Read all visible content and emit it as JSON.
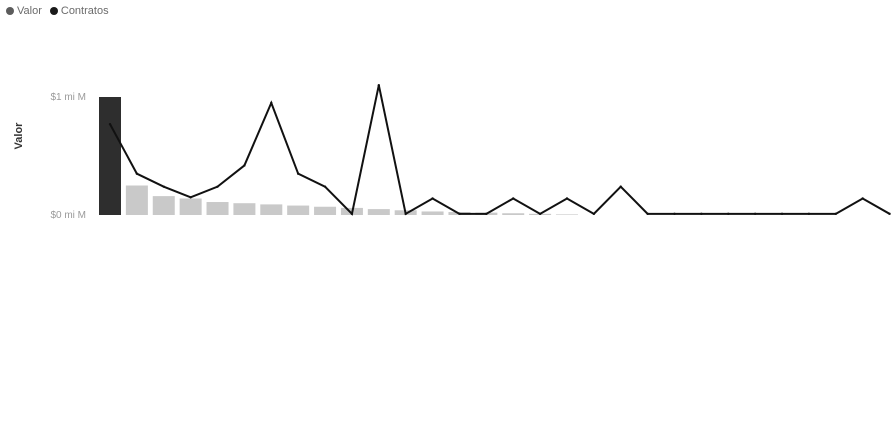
{
  "legend": {
    "bar_label": "Valor",
    "line_label": "Contratos"
  },
  "chart_data": {
    "type": "bar",
    "title": "",
    "xlabel": "",
    "ylabel": "Valor",
    "y_ticks": [
      "$0 mi M",
      "$1 mi M"
    ],
    "ylim": [
      0,
      1.05
    ],
    "grid": false,
    "legend_position": "top-left",
    "categories": [
      "",
      "",
      "",
      "",
      "",
      "",
      "",
      "",
      "",
      "",
      "",
      "",
      "",
      "",
      "",
      "",
      "",
      "",
      "",
      "",
      "",
      "",
      "",
      "",
      "",
      "",
      "",
      "",
      "",
      ""
    ],
    "series": [
      {
        "name": "Valor",
        "kind": "bar",
        "color": "#2e2e2e",
        "values": [
          1.0,
          0.25,
          0.16,
          0.14,
          0.11,
          0.1,
          0.09,
          0.08,
          0.07,
          0.06,
          0.05,
          0.04,
          0.03,
          0.025,
          0.02,
          0.015,
          0.01,
          0.005,
          0,
          0,
          0,
          0,
          0,
          0,
          0,
          0,
          0,
          0,
          0,
          0
        ]
      },
      {
        "name": "Contratos",
        "kind": "line",
        "color": "#111111",
        "values": [
          0.77,
          0.35,
          0.24,
          0.15,
          0.24,
          0.42,
          0.95,
          0.35,
          0.24,
          0.01,
          1.1,
          0.01,
          0.14,
          0.01,
          0.01,
          0.14,
          0.01,
          0.14,
          0.01,
          0.24,
          0.01,
          0.01,
          0.01,
          0.01,
          0.01,
          0.01,
          0.01,
          0.01,
          0.14,
          0.01
        ]
      }
    ]
  }
}
